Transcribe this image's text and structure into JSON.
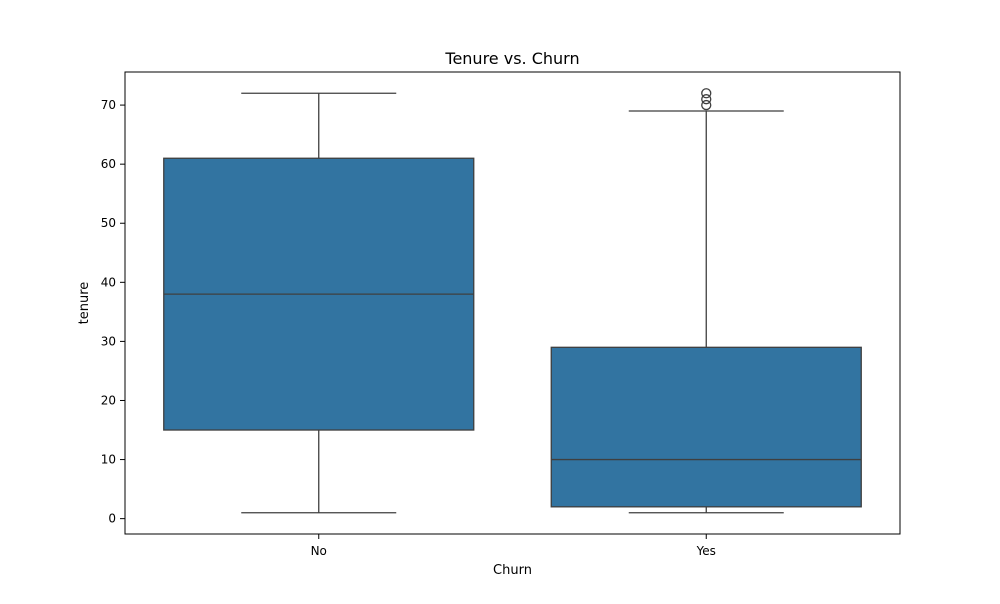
{
  "chart_data": {
    "type": "box",
    "title": "Tenure vs. Churn",
    "xlabel": "Churn",
    "ylabel": "tenure",
    "categories": [
      "No",
      "Yes"
    ],
    "ylim": [
      -2.6,
      75.6
    ],
    "yticks": [
      0,
      10,
      20,
      30,
      40,
      50,
      60,
      70
    ],
    "grid": false,
    "boxes": [
      {
        "category": "No",
        "whisker_low": 1,
        "q1": 15,
        "median": 38,
        "q3": 61,
        "whisker_high": 72,
        "outliers": []
      },
      {
        "category": "Yes",
        "whisker_low": 1,
        "q1": 2,
        "median": 10,
        "q3": 29,
        "whisker_high": 69,
        "outliers": [
          70,
          71,
          72
        ]
      }
    ],
    "colors": {
      "box_fill": "#3274a1",
      "line": "#3f3f3f",
      "axis": "#000000"
    }
  }
}
